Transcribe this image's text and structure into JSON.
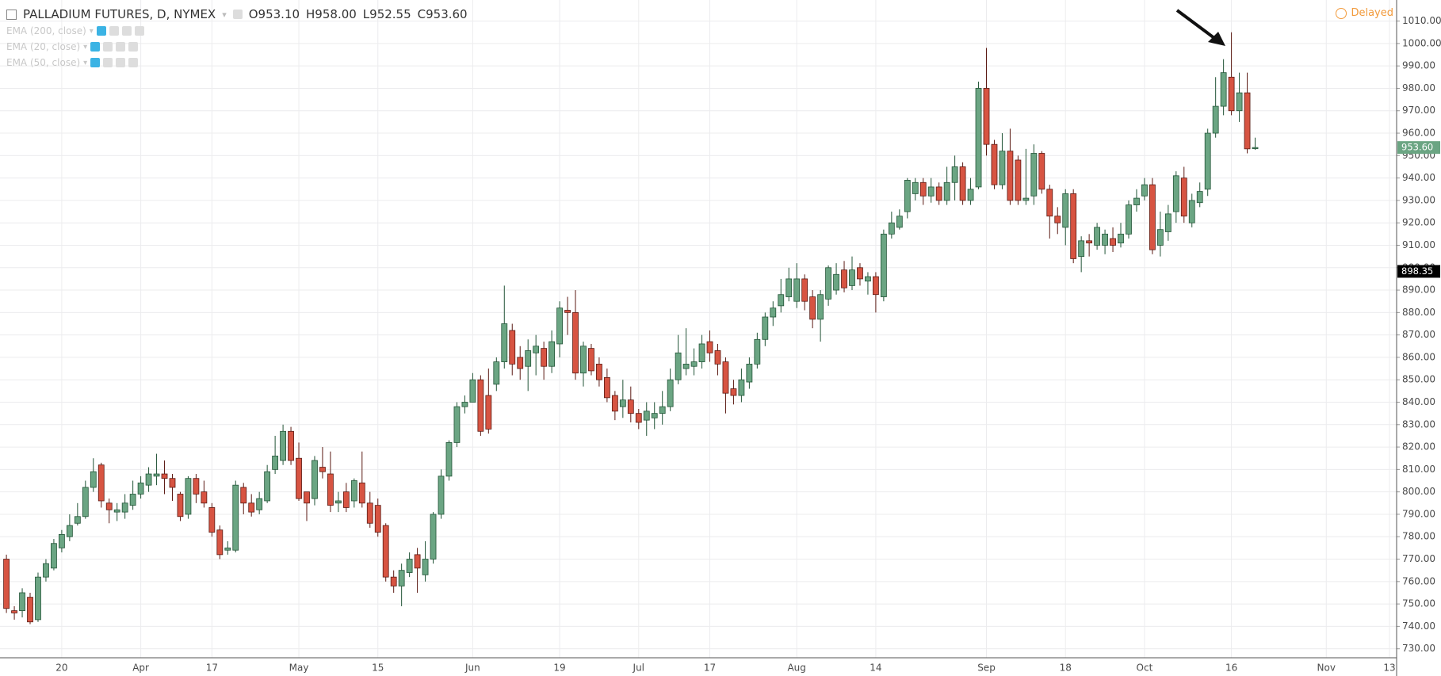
{
  "chart_data": {
    "type": "candlestick",
    "title": "PALLADIUM FUTURES, D, NYMEX",
    "legend_values": [
      "O953.10",
      "H958.00",
      "L952.55",
      "C953.60"
    ],
    "indicators": [
      "EMA (200, close)",
      "EMA (20, close)",
      "EMA (50, close)"
    ],
    "status": "Delayed",
    "categories": [
      null,
      null,
      null,
      null,
      null,
      null,
      null,
      "20",
      null,
      null,
      null,
      null,
      null,
      null,
      null,
      null,
      null,
      "Apr",
      null,
      null,
      null,
      null,
      null,
      null,
      null,
      null,
      "17",
      null,
      null,
      null,
      null,
      null,
      null,
      null,
      null,
      null,
      null,
      "May",
      null,
      null,
      null,
      null,
      null,
      null,
      null,
      null,
      null,
      "15",
      null,
      null,
      null,
      null,
      null,
      null,
      null,
      null,
      null,
      null,
      null,
      "Jun",
      null,
      null,
      null,
      null,
      null,
      null,
      null,
      null,
      null,
      null,
      "19",
      null,
      null,
      null,
      null,
      null,
      null,
      null,
      null,
      null,
      "Jul",
      null,
      null,
      null,
      null,
      null,
      null,
      null,
      null,
      "17",
      null,
      null,
      null,
      null,
      null,
      null,
      null,
      null,
      null,
      null,
      "Aug",
      null,
      null,
      null,
      null,
      null,
      null,
      null,
      null,
      null,
      "14",
      null,
      null,
      null,
      null,
      null,
      null,
      null,
      null,
      null,
      null,
      null,
      null,
      null,
      "Sep",
      null,
      null,
      null,
      null,
      null,
      null,
      null,
      null,
      null,
      "18",
      null,
      null,
      null,
      null,
      null,
      null,
      null,
      null,
      null,
      "Oct",
      null,
      null,
      null,
      null,
      null,
      null,
      null,
      null,
      null,
      null,
      "16",
      null,
      null,
      null,
      null,
      null,
      null,
      null,
      null,
      null,
      null,
      null,
      "Nov",
      null,
      null,
      null,
      null,
      null,
      null,
      null,
      "13"
    ],
    "open": [
      770,
      747,
      747,
      753,
      743,
      762,
      766,
      775,
      780,
      786,
      789,
      802,
      812,
      795,
      791,
      791,
      794,
      799,
      803,
      807,
      808,
      806,
      799,
      790,
      806,
      800,
      793,
      783,
      774,
      774,
      802,
      795,
      792,
      796,
      810,
      814,
      827,
      815,
      800,
      797,
      811,
      808,
      795,
      800,
      796,
      804,
      795,
      794,
      785,
      762,
      758,
      764,
      772,
      763,
      770,
      790,
      807,
      822,
      838,
      840,
      850,
      843,
      848,
      858,
      872,
      860,
      856,
      862,
      864,
      856,
      866,
      881,
      880,
      853,
      864,
      857,
      851,
      843,
      838,
      841,
      835,
      832,
      833,
      835,
      838,
      850,
      855,
      856,
      858,
      867,
      863,
      858,
      846,
      843,
      849,
      857,
      868,
      878,
      883,
      887,
      885,
      895,
      887,
      877,
      886,
      890,
      899,
      892,
      900,
      894,
      896,
      887,
      915,
      918,
      925,
      933,
      938,
      932,
      936,
      930,
      938,
      945,
      930,
      936,
      980,
      955,
      937,
      952,
      948,
      930,
      932,
      951,
      935,
      923,
      918,
      933,
      905,
      912,
      910,
      910,
      913,
      911,
      915,
      928,
      932,
      937,
      910,
      916,
      925,
      940,
      920,
      929,
      935,
      960,
      972,
      985,
      970,
      978,
      953.1,
      null,
      null,
      null,
      null,
      null,
      null,
      null,
      null,
      null,
      null,
      null,
      null,
      null,
      null,
      null,
      null,
      null
    ],
    "high": [
      772,
      749,
      757,
      755,
      764,
      770,
      779,
      783,
      790,
      795,
      805,
      815,
      813,
      797,
      795,
      799,
      805,
      807,
      811,
      817,
      814,
      808,
      800,
      807,
      808,
      805,
      795,
      785,
      778,
      805,
      804,
      799,
      800,
      812,
      825,
      830,
      829,
      822,
      800,
      816,
      820,
      818,
      800,
      804,
      806,
      818,
      800,
      797,
      786,
      765,
      768,
      773,
      775,
      778,
      791,
      810,
      823,
      840,
      843,
      853,
      852,
      855,
      860,
      892,
      875,
      865,
      868,
      870,
      867,
      872,
      885,
      887,
      890,
      867,
      866,
      860,
      855,
      845,
      850,
      847,
      837,
      840,
      840,
      845,
      855,
      870,
      873,
      864,
      870,
      872,
      866,
      860,
      850,
      855,
      860,
      871,
      880,
      885,
      895,
      900,
      902,
      897,
      890,
      890,
      901,
      902,
      903,
      905,
      902,
      898,
      898,
      917,
      925,
      926,
      940,
      940,
      940,
      940,
      938,
      945,
      950,
      947,
      940,
      983,
      998,
      957,
      960,
      962,
      950,
      953,
      955,
      952,
      937,
      927,
      935,
      935,
      914,
      915,
      920,
      917,
      918,
      920,
      930,
      935,
      940,
      940,
      925,
      928,
      943,
      945,
      933,
      938,
      962,
      985,
      993,
      1005,
      987,
      987,
      958,
      null,
      null,
      null,
      null,
      null,
      null,
      null,
      null,
      null,
      null,
      null,
      null,
      null,
      null,
      null,
      null,
      null
    ],
    "low": [
      746,
      743,
      744,
      741,
      742,
      760,
      765,
      773,
      778,
      785,
      788,
      800,
      793,
      786,
      787,
      788,
      792,
      797,
      800,
      803,
      799,
      796,
      787,
      788,
      795,
      793,
      780,
      770,
      772,
      773,
      790,
      789,
      790,
      795,
      808,
      812,
      812,
      796,
      787,
      794,
      806,
      791,
      791,
      791,
      793,
      793,
      784,
      780,
      760,
      755,
      749,
      762,
      755,
      760,
      768,
      788,
      805,
      820,
      835,
      840,
      825,
      826,
      845,
      855,
      852,
      850,
      845,
      852,
      850,
      853,
      860,
      870,
      850,
      847,
      852,
      847,
      840,
      832,
      833,
      831,
      828,
      825,
      828,
      830,
      836,
      848,
      852,
      852,
      855,
      858,
      852,
      835,
      839,
      840,
      846,
      855,
      865,
      874,
      880,
      885,
      882,
      881,
      873,
      867,
      883,
      888,
      889,
      890,
      892,
      888,
      880,
      885,
      913,
      917,
      922,
      930,
      928,
      929,
      928,
      928,
      930,
      928,
      928,
      935,
      950,
      935,
      935,
      928,
      928,
      928,
      928,
      933,
      913,
      915,
      910,
      902,
      898,
      905,
      908,
      906,
      907,
      909,
      913,
      925,
      930,
      906,
      905,
      912,
      920,
      920,
      918,
      927,
      932,
      958,
      968,
      968,
      965,
      951,
      952.55,
      null,
      null,
      null,
      null,
      null,
      null,
      null,
      null,
      null,
      null,
      null,
      null,
      null,
      null,
      null,
      null,
      null
    ],
    "close": [
      748,
      746,
      755,
      742,
      762,
      768,
      777,
      781,
      785,
      789,
      802,
      809,
      796,
      792,
      792,
      795,
      799,
      804,
      808,
      808,
      806,
      802,
      789,
      806,
      799,
      795,
      782,
      772,
      775,
      803,
      795,
      791,
      797,
      809,
      816,
      827,
      814,
      797,
      795,
      814,
      809,
      794,
      796,
      793,
      805,
      795,
      786,
      782,
      762,
      758,
      765,
      770,
      766,
      770,
      790,
      807,
      822,
      838,
      840,
      850,
      827,
      828,
      858,
      875,
      857,
      855,
      863,
      865,
      856,
      867,
      882,
      880,
      853,
      865,
      854,
      850,
      842,
      836,
      841,
      835,
      831,
      836,
      835,
      838,
      850,
      862,
      857,
      858,
      866,
      862,
      857,
      844,
      843,
      850,
      857,
      868,
      878,
      882,
      888,
      895,
      895,
      885,
      877,
      888,
      900,
      897,
      891,
      899,
      895,
      896,
      888,
      915,
      920,
      923,
      939,
      938,
      932,
      936,
      930,
      938,
      945,
      930,
      935,
      980,
      955,
      937,
      952,
      930,
      930,
      931,
      951,
      935,
      923,
      920,
      933,
      904,
      912,
      911,
      918,
      915,
      910,
      915,
      928,
      931,
      937,
      908,
      917,
      924,
      941,
      923,
      930,
      934,
      960,
      972,
      987,
      970,
      978,
      953,
      953.6,
      null,
      null,
      null,
      null,
      null,
      null,
      null,
      null,
      null,
      null,
      null,
      null,
      null,
      null,
      null,
      null,
      null
    ],
    "up_color": "#6ba583",
    "down_color": "#d75442",
    "up_border": "#225437",
    "down_border": "#5b1a13",
    "ylim": [
      726,
      1019.4
    ],
    "yticks": [
      {
        "value": 730,
        "label": "730.00"
      },
      {
        "value": 740,
        "label": "740.00"
      },
      {
        "value": 750,
        "label": "750.00"
      },
      {
        "value": 760,
        "label": "760.00"
      },
      {
        "value": 770,
        "label": "770.00"
      },
      {
        "value": 780,
        "label": "780.00"
      },
      {
        "value": 790,
        "label": "790.00"
      },
      {
        "value": 800,
        "label": "800.00"
      },
      {
        "value": 810,
        "label": "810.00"
      },
      {
        "value": 820,
        "label": "820.00"
      },
      {
        "value": 830,
        "label": "830.00"
      },
      {
        "value": 840,
        "label": "840.00"
      },
      {
        "value": 850,
        "label": "850.00"
      },
      {
        "value": 860,
        "label": "860.00"
      },
      {
        "value": 870,
        "label": "870.00"
      },
      {
        "value": 880,
        "label": "880.00"
      },
      {
        "value": 890,
        "label": "890.00"
      },
      {
        "value": 900,
        "label": "900.00"
      },
      {
        "value": 910,
        "label": "910.00"
      },
      {
        "value": 920,
        "label": "920.00"
      },
      {
        "value": 930,
        "label": "930.00"
      },
      {
        "value": 940,
        "label": "940.00"
      },
      {
        "value": 950,
        "label": "950.00"
      },
      {
        "value": 960,
        "label": "960.00"
      },
      {
        "value": 970,
        "label": "970.00"
      },
      {
        "value": 980,
        "label": "980.00"
      },
      {
        "value": 990,
        "label": "990.00"
      },
      {
        "value": 1000,
        "label": "1000.00"
      },
      {
        "value": 1010,
        "label": "1010.00"
      }
    ],
    "price_tags": [
      {
        "value": 953.6,
        "label": "953.60",
        "color": "#6ba583"
      },
      {
        "value": 898.35,
        "label": "898.35",
        "color": "#000000"
      }
    ],
    "grid": true
  }
}
